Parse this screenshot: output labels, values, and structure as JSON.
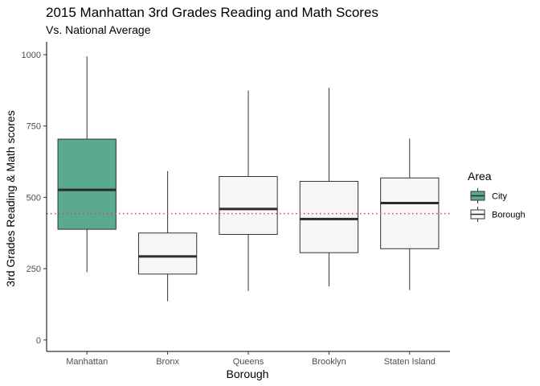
{
  "chart_data": {
    "type": "box",
    "title": "2015 Manhattan 3rd Grades Reading and Math Scores",
    "subtitle": "Vs. National Average",
    "xlabel": "Borough",
    "ylabel": "3rd Grades Reading & Math scores",
    "ylim": [
      -40,
      1045
    ],
    "yticks": [
      0,
      250,
      500,
      750,
      1000
    ],
    "grid": false,
    "categories": [
      "Manhattan",
      "Bronx",
      "Queens",
      "Brooklyn",
      "Staten Island"
    ],
    "boxes": [
      {
        "category": "Manhattan",
        "group": "City",
        "min": 238,
        "q1": 388,
        "median": 526,
        "q3": 704,
        "max": 994
      },
      {
        "category": "Bronx",
        "group": "Borough",
        "min": 136,
        "q1": 231,
        "median": 293,
        "q3": 375,
        "max": 592
      },
      {
        "category": "Queens",
        "group": "Borough",
        "min": 172,
        "q1": 370,
        "median": 459,
        "q3": 573,
        "max": 874
      },
      {
        "category": "Brooklyn",
        "group": "Borough",
        "min": 188,
        "q1": 306,
        "median": 424,
        "q3": 556,
        "max": 884
      },
      {
        "category": "Staten Island",
        "group": "Borough",
        "min": 175,
        "q1": 320,
        "median": 480,
        "q3": 568,
        "max": 706
      }
    ],
    "reference_line": {
      "value": 443,
      "color": "#e8423a",
      "style": "dotted"
    },
    "legend": {
      "title": "Area",
      "position": "right",
      "items": [
        {
          "label": "City",
          "color": "#5aaa90"
        },
        {
          "label": "Borough",
          "color": "#f6f6f6"
        }
      ]
    }
  }
}
